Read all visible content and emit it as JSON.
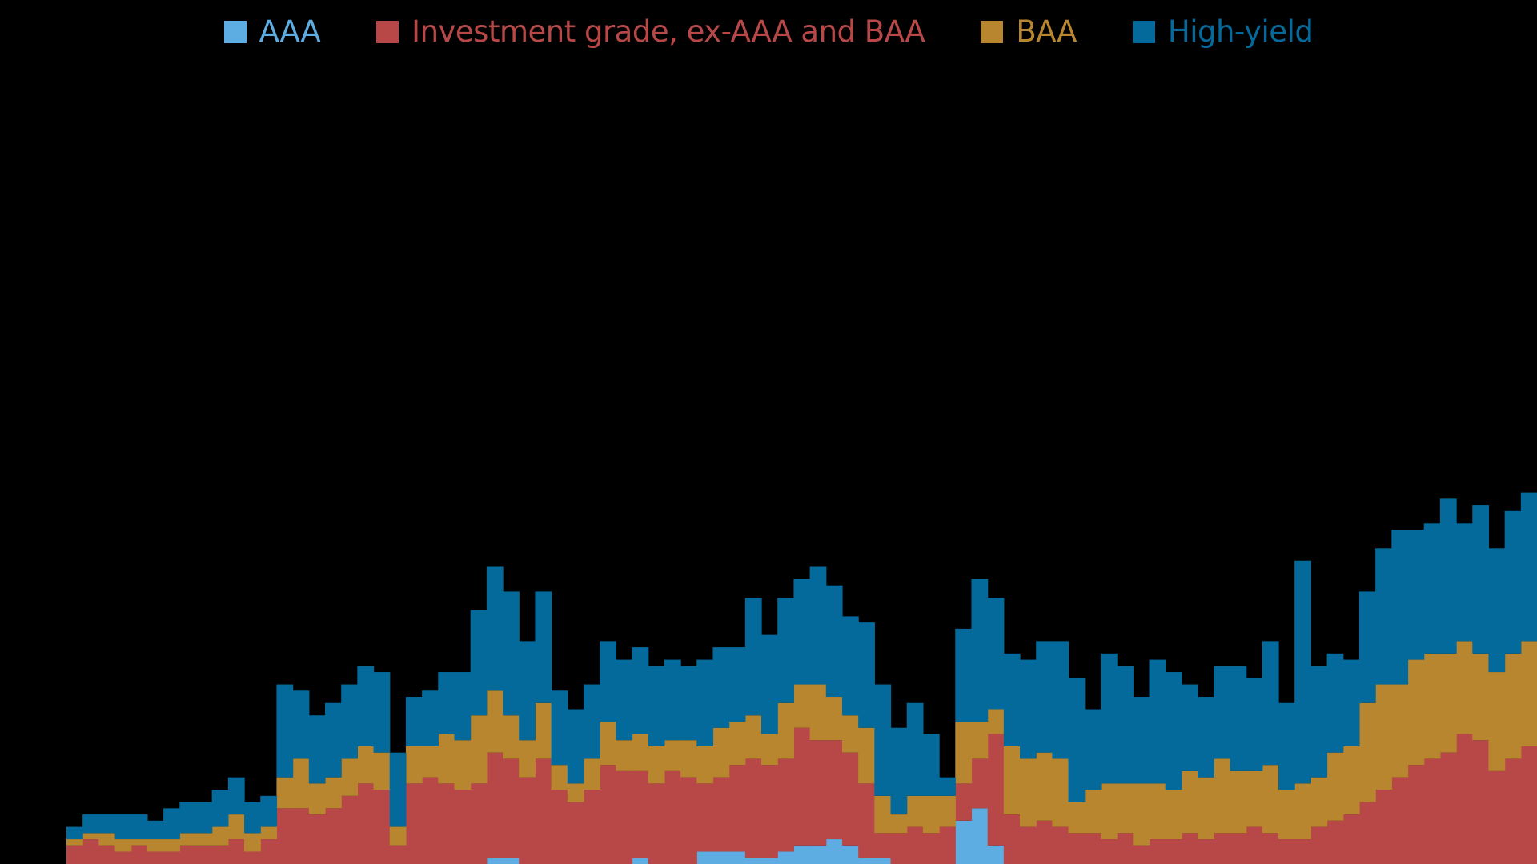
{
  "chart_data": {
    "type": "bar",
    "subtype": "stacked-stepped-area",
    "title": "",
    "xlabel": "",
    "ylabel": "",
    "legend_position": "top",
    "grid": false,
    "ylim": [
      0,
      100
    ],
    "series": [
      {
        "name": "AAA",
        "color": "#5dade2",
        "values": [
          0,
          0,
          0,
          0,
          0,
          0,
          0,
          0,
          0,
          0,
          0,
          0,
          0,
          0,
          0,
          0,
          0,
          0,
          0,
          0,
          0,
          0,
          0,
          0,
          0,
          0,
          1,
          1,
          0,
          0,
          0,
          0,
          0,
          0,
          0,
          1,
          0,
          0,
          0,
          2,
          2,
          2,
          1,
          1,
          2,
          3,
          3,
          4,
          3,
          1,
          1,
          0,
          0,
          0,
          0,
          7,
          9,
          3,
          0,
          0,
          0,
          0,
          0,
          0,
          0,
          0,
          0,
          0,
          0,
          0,
          0,
          0,
          0,
          0,
          0,
          0,
          0,
          0,
          0,
          0,
          0,
          0,
          0,
          0,
          0,
          0,
          0,
          0,
          0,
          0,
          0
        ]
      },
      {
        "name": "Investment grade, ex-AAA and BAA",
        "color": "#b84848",
        "values": [
          3,
          4,
          3,
          2,
          3,
          2,
          2,
          3,
          3,
          3,
          4,
          2,
          4,
          9,
          9,
          8,
          9,
          11,
          13,
          12,
          3,
          13,
          14,
          13,
          12,
          13,
          17,
          16,
          14,
          17,
          12,
          10,
          12,
          16,
          15,
          14,
          13,
          15,
          14,
          11,
          12,
          14,
          16,
          15,
          15,
          19,
          17,
          16,
          15,
          12,
          4,
          5,
          6,
          5,
          6,
          6,
          8,
          18,
          8,
          6,
          7,
          6,
          5,
          5,
          4,
          5,
          3,
          4,
          4,
          5,
          4,
          5,
          5,
          6,
          5,
          4,
          4,
          6,
          7,
          8,
          10,
          12,
          14,
          16,
          17,
          18,
          21,
          20,
          15,
          17,
          19
        ]
      },
      {
        "name": "BAA",
        "color": "#b8862e",
        "values": [
          1,
          1,
          2,
          2,
          1,
          2,
          2,
          2,
          2,
          3,
          4,
          3,
          2,
          5,
          8,
          5,
          5,
          6,
          6,
          6,
          3,
          6,
          5,
          8,
          8,
          11,
          10,
          7,
          6,
          9,
          4,
          3,
          5,
          7,
          5,
          6,
          6,
          5,
          6,
          6,
          8,
          7,
          7,
          5,
          9,
          7,
          9,
          7,
          6,
          9,
          6,
          3,
          5,
          6,
          5,
          10,
          6,
          4,
          11,
          11,
          11,
          11,
          5,
          7,
          9,
          8,
          10,
          9,
          8,
          10,
          10,
          12,
          10,
          9,
          11,
          8,
          9,
          8,
          11,
          11,
          16,
          17,
          15,
          17,
          17,
          16,
          15,
          14,
          16,
          17,
          17
        ]
      },
      {
        "name": "High-yield",
        "color": "#046a9b",
        "values": [
          2,
          3,
          3,
          4,
          4,
          3,
          5,
          5,
          5,
          6,
          6,
          5,
          5,
          15,
          11,
          11,
          12,
          12,
          13,
          13,
          12,
          8,
          9,
          10,
          11,
          17,
          20,
          20,
          16,
          18,
          12,
          12,
          12,
          13,
          13,
          14,
          13,
          13,
          12,
          14,
          13,
          12,
          19,
          16,
          17,
          17,
          19,
          18,
          16,
          17,
          18,
          14,
          15,
          10,
          3,
          15,
          23,
          18,
          15,
          16,
          18,
          19,
          20,
          13,
          21,
          19,
          14,
          20,
          19,
          14,
          13,
          15,
          17,
          15,
          20,
          14,
          36,
          18,
          16,
          14,
          18,
          22,
          25,
          21,
          21,
          25,
          19,
          24,
          20,
          23,
          24
        ]
      }
    ],
    "categories_count": 91
  },
  "legend": {
    "items": [
      {
        "label": "AAA",
        "color": "#5dade2"
      },
      {
        "label": "Investment grade, ex-AAA and BAA",
        "color": "#b84848"
      },
      {
        "label": "BAA",
        "color": "#b8862e"
      },
      {
        "label": "High-yield",
        "color": "#046a9b"
      }
    ]
  },
  "colors": {
    "background": "#000000"
  }
}
